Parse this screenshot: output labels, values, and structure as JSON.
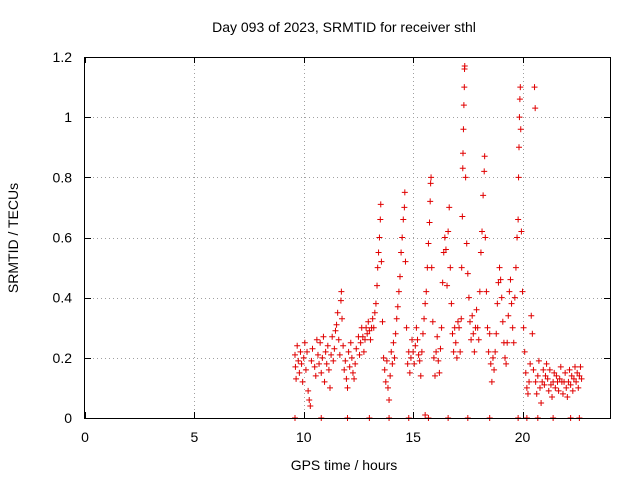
{
  "chart_data": {
    "type": "scatter",
    "title": "Day 093 of 2023, SRMTID for receiver sthl",
    "xlabel": "GPS time / hours",
    "ylabel": "SRMTID / TECUs",
    "xlim": [
      0,
      24
    ],
    "ylim": [
      0,
      1.2
    ],
    "xticks": [
      0,
      5,
      10,
      15,
      20
    ],
    "yticks": [
      0,
      0.2,
      0.4,
      0.6,
      0.8,
      1.0,
      1.2
    ],
    "xtick_labels": [
      "0",
      "5",
      "10",
      "15",
      "20"
    ],
    "ytick_labels": [
      "0",
      "0.2",
      "0.4",
      "0.6",
      "0.8",
      "1",
      "1.2"
    ],
    "grid": true,
    "marker": "+",
    "color": "#e00000",
    "series": [
      {
        "name": "sthl",
        "points": [
          [
            9.6,
            0.21
          ],
          [
            9.62,
            0.17
          ],
          [
            9.65,
            0.13
          ],
          [
            9.7,
            0.24
          ],
          [
            9.75,
            0.19
          ],
          [
            9.8,
            0.15
          ],
          [
            9.85,
            0.22
          ],
          [
            9.9,
            0.18
          ],
          [
            9.95,
            0.12
          ],
          [
            10.0,
            0.2
          ],
          [
            10.05,
            0.25
          ],
          [
            10.1,
            0.16
          ],
          [
            10.15,
            0.22
          ],
          [
            10.2,
            0.09
          ],
          [
            10.25,
            0.06
          ],
          [
            10.3,
            0.04
          ],
          [
            10.35,
            0.19
          ],
          [
            10.4,
            0.23
          ],
          [
            10.5,
            0.17
          ],
          [
            10.55,
            0.14
          ],
          [
            10.6,
            0.26
          ],
          [
            10.65,
            0.21
          ],
          [
            10.7,
            0.18
          ],
          [
            10.75,
            0.25
          ],
          [
            10.8,
            0.15
          ],
          [
            10.85,
            0.2
          ],
          [
            10.9,
            0.27
          ],
          [
            10.95,
            0.12
          ],
          [
            11.0,
            0.22
          ],
          [
            11.05,
            0.18
          ],
          [
            11.1,
            0.24
          ],
          [
            11.15,
            0.16
          ],
          [
            11.2,
            0.1
          ],
          [
            11.25,
            0.21
          ],
          [
            11.3,
            0.27
          ],
          [
            11.35,
            0.19
          ],
          [
            11.4,
            0.23
          ],
          [
            11.45,
            0.29
          ],
          [
            11.5,
            0.31
          ],
          [
            11.55,
            0.35
          ],
          [
            11.6,
            0.26
          ],
          [
            11.65,
            0.21
          ],
          [
            11.7,
            0.39
          ],
          [
            11.72,
            0.42
          ],
          [
            11.75,
            0.33
          ],
          [
            11.8,
            0.24
          ],
          [
            11.85,
            0.16
          ],
          [
            11.9,
            0.19
          ],
          [
            11.95,
            0.13
          ],
          [
            12.0,
            0.1
          ],
          [
            12.05,
            0.22
          ],
          [
            12.1,
            0.17
          ],
          [
            12.15,
            0.25
          ],
          [
            12.2,
            0.2
          ],
          [
            12.25,
            0.15
          ],
          [
            12.3,
            0.13
          ],
          [
            12.35,
            0.18
          ],
          [
            12.4,
            0.23
          ],
          [
            12.5,
            0.27
          ],
          [
            12.55,
            0.21
          ],
          [
            12.6,
            0.25
          ],
          [
            12.65,
            0.3
          ],
          [
            12.7,
            0.27
          ],
          [
            12.75,
            0.22
          ],
          [
            12.8,
            0.26
          ],
          [
            12.85,
            0.3
          ],
          [
            12.9,
            0.28
          ],
          [
            12.95,
            0.32
          ],
          [
            13.0,
            0.29
          ],
          [
            13.05,
            0.26
          ],
          [
            13.1,
            0.3
          ],
          [
            13.15,
            0.33
          ],
          [
            13.2,
            0.3
          ],
          [
            13.25,
            0.35
          ],
          [
            13.3,
            0.38
          ],
          [
            13.35,
            0.44
          ],
          [
            13.38,
            0.5
          ],
          [
            13.42,
            0.55
          ],
          [
            13.46,
            0.6
          ],
          [
            13.5,
            0.66
          ],
          [
            13.52,
            0.71
          ],
          [
            13.55,
            0.52
          ],
          [
            13.6,
            0.32
          ],
          [
            13.65,
            0.2
          ],
          [
            13.7,
            0.16
          ],
          [
            13.75,
            0.12
          ],
          [
            13.8,
            0.19
          ],
          [
            13.85,
            0.1
          ],
          [
            13.9,
            0.06
          ],
          [
            13.95,
            0.14
          ],
          [
            14.0,
            0.22
          ],
          [
            14.05,
            0.18
          ],
          [
            14.1,
            0.25
          ],
          [
            14.15,
            0.2
          ],
          [
            14.2,
            0.28
          ],
          [
            14.25,
            0.33
          ],
          [
            14.3,
            0.37
          ],
          [
            14.35,
            0.42
          ],
          [
            14.4,
            0.47
          ],
          [
            14.45,
            0.55
          ],
          [
            14.5,
            0.6
          ],
          [
            14.55,
            0.66
          ],
          [
            14.6,
            0.7
          ],
          [
            14.62,
            0.75
          ],
          [
            14.65,
            0.52
          ],
          [
            14.7,
            0.3
          ],
          [
            14.75,
            0.18
          ],
          [
            14.8,
            0.22
          ],
          [
            14.85,
            0.15
          ],
          [
            14.9,
            0.2
          ],
          [
            14.95,
            0.26
          ],
          [
            15.0,
            0.22
          ],
          [
            15.05,
            0.18
          ],
          [
            15.1,
            0.24
          ],
          [
            15.15,
            0.3
          ],
          [
            15.2,
            0.26
          ],
          [
            15.25,
            0.21
          ],
          [
            15.3,
            0.19
          ],
          [
            15.35,
            0.14
          ],
          [
            15.4,
            0.22
          ],
          [
            15.45,
            0.28
          ],
          [
            15.5,
            0.33
          ],
          [
            15.55,
            0.38
          ],
          [
            15.6,
            0.42
          ],
          [
            15.65,
            0.5
          ],
          [
            15.7,
            0.58
          ],
          [
            15.75,
            0.65
          ],
          [
            15.78,
            0.72
          ],
          [
            15.8,
            0.78
          ],
          [
            15.82,
            0.8
          ],
          [
            15.85,
            0.5
          ],
          [
            15.9,
            0.32
          ],
          [
            15.95,
            0.2
          ],
          [
            16.0,
            0.14
          ],
          [
            16.05,
            0.22
          ],
          [
            16.1,
            0.27
          ],
          [
            16.15,
            0.19
          ],
          [
            16.2,
            0.15
          ],
          [
            16.25,
            0.23
          ],
          [
            16.3,
            0.3
          ],
          [
            16.35,
            0.45
          ],
          [
            16.4,
            0.55
          ],
          [
            16.45,
            0.6
          ],
          [
            16.5,
            0.56
          ],
          [
            16.55,
            0.44
          ],
          [
            16.6,
            0.62
          ],
          [
            16.65,
            0.7
          ],
          [
            16.7,
            0.5
          ],
          [
            16.75,
            0.38
          ],
          [
            16.8,
            0.28
          ],
          [
            16.85,
            0.22
          ],
          [
            16.9,
            0.3
          ],
          [
            16.95,
            0.25
          ],
          [
            17.0,
            0.2
          ],
          [
            17.05,
            0.32
          ],
          [
            17.1,
            0.3
          ],
          [
            17.15,
            0.22
          ],
          [
            17.2,
            0.33
          ],
          [
            17.22,
            0.5
          ],
          [
            17.25,
            0.67
          ],
          [
            17.27,
            0.83
          ],
          [
            17.28,
            0.88
          ],
          [
            17.3,
            0.96
          ],
          [
            17.32,
            1.04
          ],
          [
            17.34,
            1.1
          ],
          [
            17.35,
            1.16
          ],
          [
            17.36,
            1.17
          ],
          [
            17.4,
            0.8
          ],
          [
            17.45,
            0.58
          ],
          [
            17.5,
            0.48
          ],
          [
            17.55,
            0.4
          ],
          [
            17.6,
            0.32
          ],
          [
            17.65,
            0.26
          ],
          [
            17.7,
            0.34
          ],
          [
            17.75,
            0.28
          ],
          [
            17.8,
            0.22
          ],
          [
            17.85,
            0.3
          ],
          [
            17.9,
            0.36
          ],
          [
            17.95,
            0.3
          ],
          [
            18.0,
            0.26
          ],
          [
            18.05,
            0.42
          ],
          [
            18.1,
            0.55
          ],
          [
            18.15,
            0.62
          ],
          [
            18.2,
            0.74
          ],
          [
            18.25,
            0.82
          ],
          [
            18.27,
            0.87
          ],
          [
            18.3,
            0.6
          ],
          [
            18.35,
            0.42
          ],
          [
            18.4,
            0.3
          ],
          [
            18.45,
            0.22
          ],
          [
            18.5,
            0.28
          ],
          [
            18.55,
            0.18
          ],
          [
            18.6,
            0.12
          ],
          [
            18.65,
            0.2
          ],
          [
            18.7,
            0.16
          ],
          [
            18.75,
            0.22
          ],
          [
            18.8,
            0.28
          ],
          [
            18.85,
            0.38
          ],
          [
            18.9,
            0.45
          ],
          [
            18.95,
            0.5
          ],
          [
            19.0,
            0.46
          ],
          [
            19.05,
            0.4
          ],
          [
            19.1,
            0.32
          ],
          [
            19.15,
            0.25
          ],
          [
            19.2,
            0.2
          ],
          [
            19.25,
            0.18
          ],
          [
            19.3,
            0.25
          ],
          [
            19.35,
            0.34
          ],
          [
            19.4,
            0.42
          ],
          [
            19.45,
            0.46
          ],
          [
            19.5,
            0.38
          ],
          [
            19.55,
            0.3
          ],
          [
            19.6,
            0.25
          ],
          [
            19.65,
            0.4
          ],
          [
            19.7,
            0.5
          ],
          [
            19.75,
            0.6
          ],
          [
            19.8,
            0.66
          ],
          [
            19.82,
            0.8
          ],
          [
            19.84,
            0.9
          ],
          [
            19.86,
            1.0
          ],
          [
            19.88,
            1.06
          ],
          [
            19.9,
            1.1
          ],
          [
            19.92,
            0.96
          ],
          [
            19.95,
            0.62
          ],
          [
            20.0,
            0.42
          ],
          [
            20.05,
            0.3
          ],
          [
            20.1,
            0.22
          ],
          [
            20.15,
            0.15
          ],
          [
            20.2,
            0.1
          ],
          [
            20.25,
            0.08
          ],
          [
            20.3,
            0.12
          ],
          [
            20.35,
            0.18
          ],
          [
            20.4,
            0.34
          ],
          [
            20.45,
            0.28
          ],
          [
            20.5,
            0.16
          ],
          [
            20.55,
            1.1
          ],
          [
            20.58,
            1.03
          ],
          [
            20.6,
            0.12
          ],
          [
            20.65,
            0.08
          ],
          [
            20.7,
            0.14
          ],
          [
            20.75,
            0.19
          ],
          [
            20.8,
            0.1
          ],
          [
            20.85,
            0.05
          ],
          [
            20.9,
            0.12
          ],
          [
            20.95,
            0.16
          ],
          [
            21.0,
            0.11
          ],
          [
            21.05,
            0.14
          ],
          [
            21.1,
            0.18
          ],
          [
            21.15,
            0.13
          ],
          [
            21.2,
            0.09
          ],
          [
            21.25,
            0.16
          ],
          [
            21.3,
            0.11
          ],
          [
            21.35,
            0.07
          ],
          [
            21.4,
            0.12
          ],
          [
            21.45,
            0.15
          ],
          [
            21.5,
            0.1
          ],
          [
            21.55,
            0.14
          ],
          [
            21.6,
            0.12
          ],
          [
            21.65,
            0.09
          ],
          [
            21.7,
            0.13
          ],
          [
            21.75,
            0.17
          ],
          [
            21.8,
            0.12
          ],
          [
            21.85,
            0.08
          ],
          [
            21.9,
            0.12
          ],
          [
            21.95,
            0.15
          ],
          [
            22.0,
            0.1
          ],
          [
            22.05,
            0.07
          ],
          [
            22.1,
            0.12
          ],
          [
            22.15,
            0.16
          ],
          [
            22.2,
            0.11
          ],
          [
            22.25,
            0.14
          ],
          [
            22.3,
            0.09
          ],
          [
            22.35,
            0.13
          ],
          [
            22.4,
            0.17
          ],
          [
            22.45,
            0.12
          ],
          [
            22.5,
            0.15
          ],
          [
            22.55,
            0.1
          ],
          [
            22.6,
            0.14
          ],
          [
            22.65,
            0.17
          ],
          [
            22.7,
            0.13
          ],
          [
            9.6,
            0.0
          ],
          [
            13.0,
            0.0
          ],
          [
            13.9,
            0.0
          ],
          [
            14.8,
            0.0
          ],
          [
            15.7,
            0.0
          ],
          [
            16.6,
            0.0
          ],
          [
            17.5,
            0.0
          ],
          [
            18.5,
            0.0
          ],
          [
            19.8,
            0.0
          ],
          [
            20.7,
            0.0
          ],
          [
            21.4,
            0.0
          ],
          [
            22.2,
            0.0
          ],
          [
            12.0,
            0.0
          ],
          [
            10.8,
            0.0
          ],
          [
            20.2,
            0.0
          ],
          [
            22.6,
            0.0
          ],
          [
            15.55,
            0.01
          ]
        ]
      }
    ]
  }
}
